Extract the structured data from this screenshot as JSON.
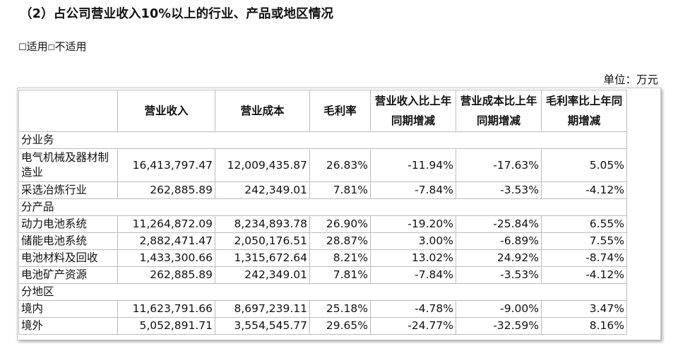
{
  "heading": "（2）占公司营业收入10%以上的行业、产品或地区情况",
  "applicability": {
    "applicable_box": "☐",
    "applicable_label": "适用",
    "not_applicable_box": "☐",
    "not_applicable_label": "不适用"
  },
  "unit": "单位：万元",
  "table": {
    "headers": [
      "",
      "营业收入",
      "营业成本",
      "毛利率",
      "营业收入比上年同期增减",
      "营业成本比上年同期增减",
      "毛利率比上年同期增减"
    ],
    "sections": [
      {
        "title": "分业务",
        "rows": [
          [
            "电气机械及器材制造业",
            "16,413,797.47",
            "12,009,435.87",
            "26.83%",
            "-11.94%",
            "-17.63%",
            "5.05%"
          ],
          [
            "采选冶炼行业",
            "262,885.89",
            "242,349.01",
            "7.81%",
            "-7.84%",
            "-3.53%",
            "-4.12%"
          ]
        ]
      },
      {
        "title": "分产品",
        "rows": [
          [
            "动力电池系统",
            "11,264,872.09",
            "8,234,893.78",
            "26.90%",
            "-19.20%",
            "-25.84%",
            "6.55%"
          ],
          [
            "储能电池系统",
            "2,882,471.47",
            "2,050,176.51",
            "28.87%",
            "3.00%",
            "-6.89%",
            "7.55%"
          ],
          [
            "电池材料及回收",
            "1,433,300.66",
            "1,315,672.64",
            "8.21%",
            "13.02%",
            "24.92%",
            "-8.74%"
          ],
          [
            "电池矿产资源",
            "262,885.89",
            "242,349.01",
            "7.81%",
            "-7.84%",
            "-3.53%",
            "-4.12%"
          ]
        ]
      },
      {
        "title": "分地区",
        "rows": [
          [
            "境内",
            "11,623,791.66",
            "8,697,239.11",
            "25.18%",
            "-4.78%",
            "-9.00%",
            "3.47%"
          ],
          [
            "境外",
            "5,052,891.71",
            "3,554,545.77",
            "29.65%",
            "-24.77%",
            "-32.59%",
            "8.16%"
          ]
        ]
      }
    ]
  }
}
